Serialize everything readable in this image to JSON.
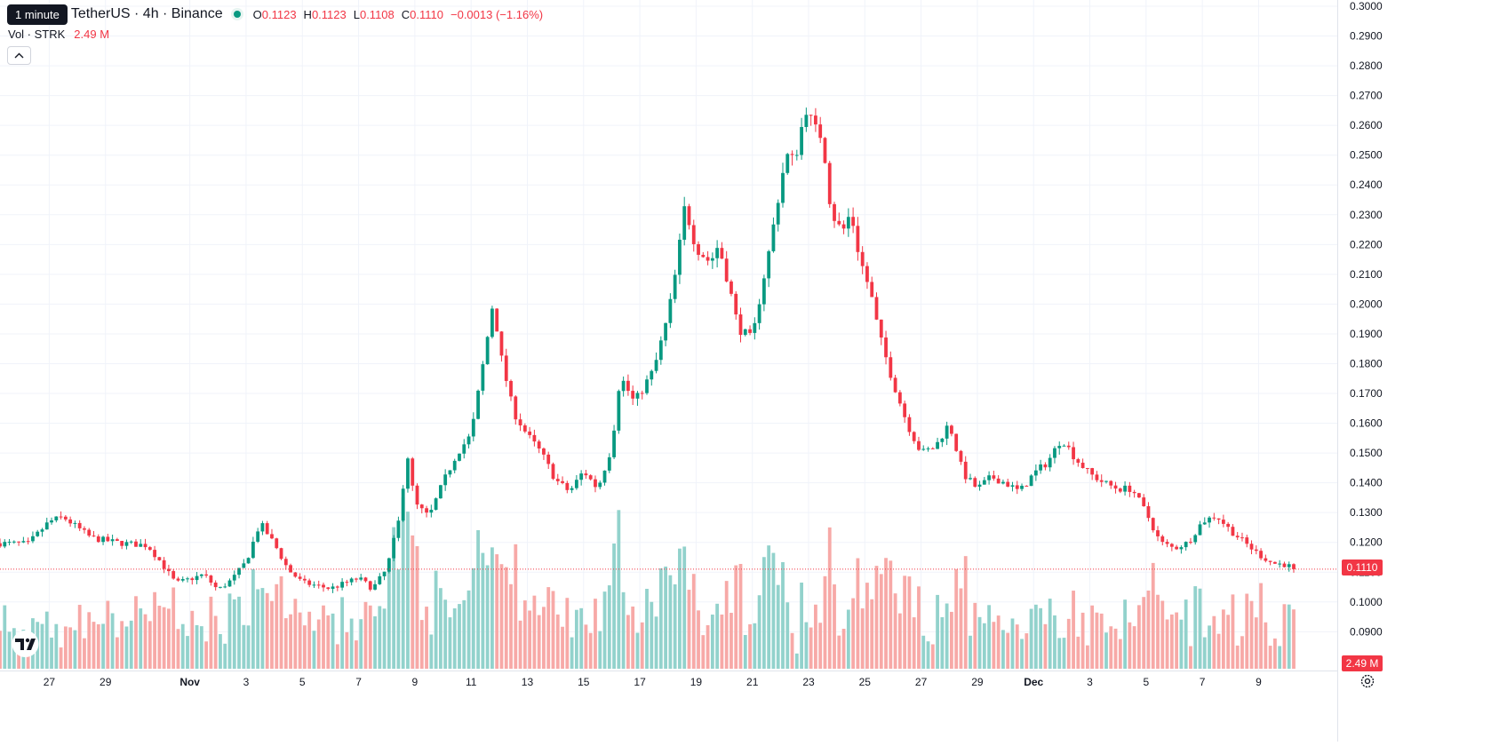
{
  "header": {
    "tooltip": "1 minute",
    "symbol": "TetherUS · 4h · Binance",
    "ohlc": {
      "o_label": "O",
      "o": "0.1123",
      "h_label": "H",
      "h": "0.1123",
      "l_label": "L",
      "l": "0.1108",
      "c_label": "C",
      "c": "0.1110",
      "change": "−0.0013 (−1.16%)"
    },
    "volume": {
      "label": "Vol · STRK",
      "value": "2.49 M"
    }
  },
  "last_price_tag": "0.1110",
  "last_volume_tag": "2.49 M",
  "colors": {
    "up": "#089981",
    "down": "#f23645",
    "up_volume": "#92d2cc",
    "down_volume": "#f7a9a7",
    "grid": "#f0f3fa"
  },
  "icons": {
    "collapse": "chevron-up-icon",
    "logo": "tradingview-logo-icon",
    "settings": "gear-icon"
  },
  "chart_data": {
    "type": "candlestick",
    "interval": "4h",
    "y_axis_ticks": [
      "0.0900",
      "0.1000",
      "0.1100",
      "0.1200",
      "0.1300",
      "0.1400",
      "0.1500",
      "0.1600",
      "0.1700",
      "0.1800",
      "0.1900",
      "0.2000",
      "0.2100",
      "0.2200",
      "0.2300",
      "0.2400",
      "0.2500",
      "0.2600",
      "0.2700",
      "0.2800",
      "0.2900",
      "0.3000"
    ],
    "ylim": [
      0.0815,
      0.301
    ],
    "x_axis_ticks": [
      {
        "label": "27",
        "day": -1
      },
      {
        "label": "29",
        "day": 1
      },
      {
        "label": "Nov",
        "day": 4,
        "bold": true
      },
      {
        "label": "3",
        "day": 6
      },
      {
        "label": "5",
        "day": 8
      },
      {
        "label": "7",
        "day": 10
      },
      {
        "label": "9",
        "day": 12
      },
      {
        "label": "11",
        "day": 14
      },
      {
        "label": "13",
        "day": 16
      },
      {
        "label": "15",
        "day": 18
      },
      {
        "label": "17",
        "day": 20
      },
      {
        "label": "19",
        "day": 22
      },
      {
        "label": "21",
        "day": 24
      },
      {
        "label": "23",
        "day": 26
      },
      {
        "label": "25",
        "day": 28
      },
      {
        "label": "27",
        "day": 30
      },
      {
        "label": "29",
        "day": 32
      },
      {
        "label": "Dec",
        "day": 34,
        "bold": true
      },
      {
        "label": "3",
        "day": 36
      },
      {
        "label": "5",
        "day": 38
      },
      {
        "label": "7",
        "day": 40
      },
      {
        "label": "9",
        "day": 42
      }
    ],
    "x_day_range": [
      -2.75,
      43.25
    ],
    "last_price": 0.111,
    "close_path": [
      [
        -2.75,
        0.1197
      ],
      [
        -1.75,
        0.1195
      ],
      [
        -1.0,
        0.127
      ],
      [
        -0.5,
        0.1285
      ],
      [
        0.5,
        0.1215
      ],
      [
        1.5,
        0.1198
      ],
      [
        2.5,
        0.119
      ],
      [
        3.0,
        0.113
      ],
      [
        3.5,
        0.1062
      ],
      [
        4.5,
        0.1092
      ],
      [
        5.0,
        0.104
      ],
      [
        5.5,
        0.1075
      ],
      [
        6.0,
        0.1135
      ],
      [
        6.5,
        0.1265
      ],
      [
        7.0,
        0.1195
      ],
      [
        7.5,
        0.1108
      ],
      [
        8.0,
        0.1065
      ],
      [
        9.0,
        0.1045
      ],
      [
        10.0,
        0.108
      ],
      [
        10.5,
        0.1045
      ],
      [
        11.0,
        0.111
      ],
      [
        11.5,
        0.13
      ],
      [
        11.7,
        0.152
      ],
      [
        12.0,
        0.133
      ],
      [
        12.5,
        0.1285
      ],
      [
        13.0,
        0.14
      ],
      [
        13.5,
        0.15
      ],
      [
        14.0,
        0.156
      ],
      [
        14.5,
        0.184
      ],
      [
        14.8,
        0.202
      ],
      [
        15.0,
        0.185
      ],
      [
        15.5,
        0.164
      ],
      [
        16.0,
        0.156
      ],
      [
        16.5,
        0.15
      ],
      [
        17.0,
        0.141
      ],
      [
        17.5,
        0.137
      ],
      [
        18.0,
        0.144
      ],
      [
        18.5,
        0.138
      ],
      [
        19.0,
        0.152
      ],
      [
        19.3,
        0.176
      ],
      [
        19.8,
        0.167
      ],
      [
        20.0,
        0.17
      ],
      [
        20.5,
        0.178
      ],
      [
        21.0,
        0.196
      ],
      [
        21.3,
        0.212
      ],
      [
        21.6,
        0.233
      ],
      [
        22.0,
        0.219
      ],
      [
        22.5,
        0.214
      ],
      [
        22.8,
        0.22
      ],
      [
        23.2,
        0.205
      ],
      [
        23.5,
        0.192
      ],
      [
        24.0,
        0.188
      ],
      [
        24.3,
        0.204
      ],
      [
        24.6,
        0.218
      ],
      [
        25.0,
        0.24
      ],
      [
        25.2,
        0.25
      ],
      [
        25.5,
        0.248
      ],
      [
        25.9,
        0.266
      ],
      [
        26.2,
        0.259
      ],
      [
        26.5,
        0.256
      ],
      [
        26.8,
        0.231
      ],
      [
        27.2,
        0.224
      ],
      [
        27.5,
        0.231
      ],
      [
        27.8,
        0.216
      ],
      [
        28.2,
        0.204
      ],
      [
        28.5,
        0.19
      ],
      [
        29.0,
        0.174
      ],
      [
        29.5,
        0.16
      ],
      [
        30.0,
        0.15
      ],
      [
        30.5,
        0.152
      ],
      [
        31.0,
        0.16
      ],
      [
        31.5,
        0.143
      ],
      [
        32.0,
        0.138
      ],
      [
        32.5,
        0.142
      ],
      [
        33.0,
        0.14
      ],
      [
        33.5,
        0.137
      ],
      [
        34.0,
        0.143
      ],
      [
        34.5,
        0.147
      ],
      [
        35.0,
        0.155
      ],
      [
        35.5,
        0.148
      ],
      [
        36.0,
        0.143
      ],
      [
        36.5,
        0.14
      ],
      [
        37.0,
        0.138
      ],
      [
        37.5,
        0.138
      ],
      [
        38.0,
        0.13
      ],
      [
        38.5,
        0.12
      ],
      [
        39.0,
        0.118
      ],
      [
        39.5,
        0.12
      ],
      [
        40.0,
        0.127
      ],
      [
        40.5,
        0.129
      ],
      [
        41.0,
        0.124
      ],
      [
        41.5,
        0.12
      ],
      [
        42.0,
        0.116
      ],
      [
        42.5,
        0.113
      ],
      [
        43.0,
        0.1125
      ],
      [
        43.25,
        0.111
      ]
    ]
  }
}
